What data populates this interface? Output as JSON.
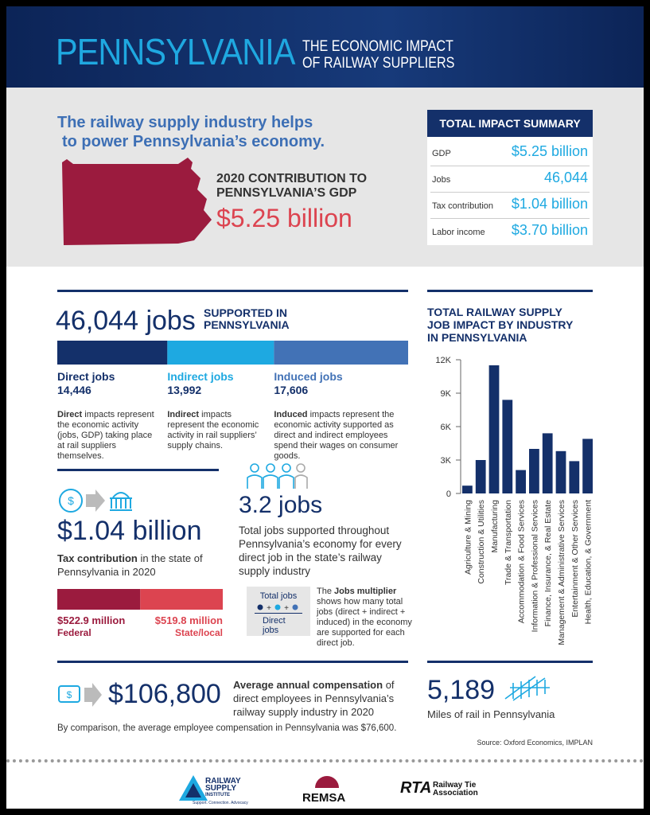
{
  "header": {
    "title": "PENNSYLVANIA",
    "subtitle": [
      "THE ECONOMIC IMPACT",
      "OF RAILWAY SUPPLIERS"
    ]
  },
  "intro": {
    "headline": [
      "The railway supply industry helps",
      "to power Pennsylvania’s economy."
    ],
    "gdp_label": [
      "2020 CONTRIBUTION TO",
      "PENNSYLVANIA’S GDP"
    ],
    "gdp_value": "$5.25 billion"
  },
  "summary": {
    "title": "TOTAL IMPACT SUMMARY",
    "rows": [
      [
        "GDP",
        "$5.25 billion"
      ],
      [
        "Jobs",
        "46,044"
      ],
      [
        "Tax contribution",
        "$1.04 billion"
      ],
      [
        "Labor income",
        "$3.70 billion"
      ]
    ]
  },
  "jobs": {
    "headline": "46,044 jobs",
    "label": [
      "SUPPORTED IN",
      "PENNSYLVANIA"
    ],
    "segments": [
      {
        "name": "Direct jobs",
        "value": 14446,
        "label": "14,446",
        "color": "#14306a",
        "desc_bold": "Direct",
        "desc": "impacts represent the economic activity (jobs, GDP) taking place at rail suppliers themselves."
      },
      {
        "name": "Indirect jobs",
        "value": 13992,
        "label": "13,992",
        "color": "#1ea9e1",
        "desc_bold": "Indirect",
        "desc": "impacts represent the economic activity in rail suppliers’ supply chains."
      },
      {
        "name": "Induced jobs",
        "value": 17606,
        "label": "17,606",
        "color": "#4272b6",
        "desc_bold": "Induced",
        "desc": "impacts represent the economic activity supported as direct and indirect employees spend their wages on consumer goods."
      }
    ]
  },
  "tax": {
    "headline": "$1.04 billion",
    "desc_bold": "Tax contribution",
    "desc": "in the state of Pennsylvania in 2020",
    "segments": [
      {
        "name": "Federal",
        "value": 522.9,
        "label": "$522.9 million",
        "color": "#9b1b3e"
      },
      {
        "name": "State/local",
        "value": 519.8,
        "label": "$519.8 million",
        "color": "#dc4450"
      }
    ]
  },
  "multiplier": {
    "headline": "3.2 jobs",
    "desc": "Total jobs supported throughout Pennsylvania’s economy for every direct job in the state’s railway supply industry",
    "icon_top": "Total jobs",
    "icon_bottom": "Direct jobs",
    "note_pre": "The",
    "note_bold": "Jobs multiplier",
    "note_post": "shows how many total jobs (direct + indirect + induced) in the economy are supported for each direct job."
  },
  "industry_chart": {
    "type": "bar",
    "title": [
      "TOTAL RAILWAY SUPPLY",
      "JOB IMPACT BY INDUSTRY",
      "IN PENNSYLVANIA"
    ],
    "categories": [
      "Agriculture & Mining",
      "Construction & Utilities",
      "Manufacturing",
      "Trade & Transportation",
      "Accommodation & Food Services",
      "Information & Professional Services",
      "Finance, Insurance, & Real Estate",
      "Management & Administrative Services",
      "Entertainment & Other Services",
      "Health, Education, & Government"
    ],
    "values": [
      700,
      3000,
      11500,
      8400,
      2100,
      4000,
      5400,
      3800,
      2900,
      4900
    ],
    "color": "#14306a",
    "ylim": [
      0,
      12000
    ],
    "yticks": [
      0,
      {
        "value": 3000,
        "label": "3K"
      },
      {
        "value": 6000,
        "label": "6K"
      },
      {
        "value": 9000,
        "label": "9K"
      },
      {
        "value": 12000,
        "label": "12K"
      }
    ]
  },
  "compensation": {
    "headline": "$106,800",
    "desc_bold": "Average annual compensation",
    "desc": "of direct employees in Pennsylvania’s railway supply industry in 2020",
    "comparison": "By comparison, the average employee compensation in Pennsylvania was $76,600."
  },
  "rail": {
    "headline": "5,189",
    "desc": "Miles of rail in Pennsylvania"
  },
  "source": "Source: Oxford Economics, IMPLAN",
  "logos": {
    "rsi": [
      "RAILWAY",
      "SUPPLY",
      "INSTITUTE"
    ],
    "rsi_tagline": "Support. Connection. Advocacy",
    "remsa": "REMSA",
    "rta": "RTA",
    "rta_name": [
      "Railway Tie",
      "Association"
    ]
  }
}
